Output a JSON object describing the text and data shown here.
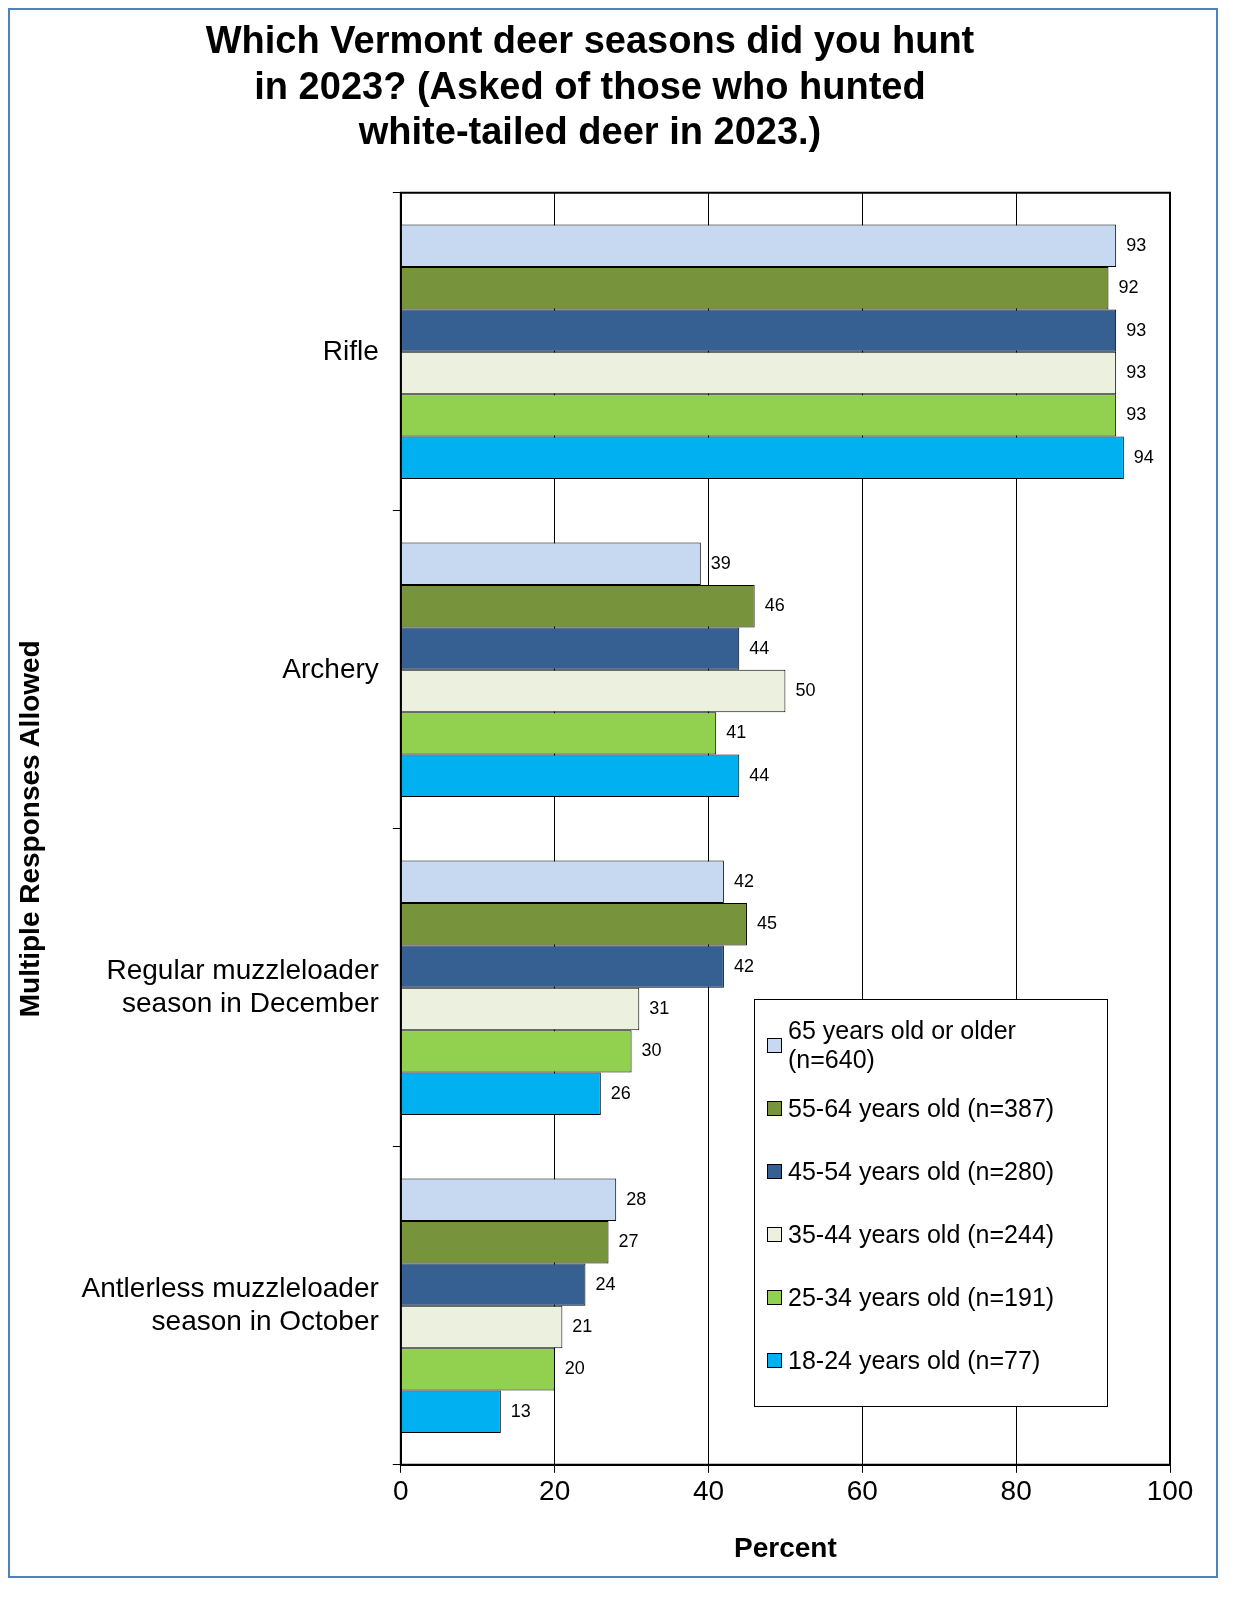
{
  "chart_data": {
    "type": "bar",
    "orientation": "horizontal",
    "title": "Which Vermont deer seasons did you hunt in 2023? (Asked of those who hunted white-tailed deer in 2023.)",
    "xlabel": "Percent",
    "ylabel": "Multiple Responses Allowed",
    "categories": [
      "Rifle",
      "Archery",
      "Regular muzzleloader season in December",
      "Antlerless muzzleloader season in October"
    ],
    "series": [
      {
        "name": "65 years old or older (n=640)",
        "color": "#c6d9f1",
        "values": [
          93,
          39,
          42,
          28
        ]
      },
      {
        "name": "55-64 years old (n=387)",
        "color": "#77933c",
        "values": [
          92,
          46,
          45,
          27
        ]
      },
      {
        "name": "45-54 years old (n=280)",
        "color": "#366092",
        "values": [
          93,
          44,
          42,
          24
        ]
      },
      {
        "name": "35-44 years old (n=244)",
        "color": "#ebf1de",
        "values": [
          93,
          50,
          31,
          21
        ]
      },
      {
        "name": "25-34 years old (n=191)",
        "color": "#92d050",
        "values": [
          93,
          41,
          30,
          20
        ]
      },
      {
        "name": "18-24 years old (n=77)",
        "color": "#00b0f0",
        "values": [
          94,
          44,
          26,
          13
        ]
      }
    ],
    "xlim": [
      0,
      100
    ],
    "xticks": [
      0,
      20,
      40,
      60,
      80,
      100
    ],
    "grid": "x",
    "data_labels": true,
    "legend": "bottom right"
  }
}
